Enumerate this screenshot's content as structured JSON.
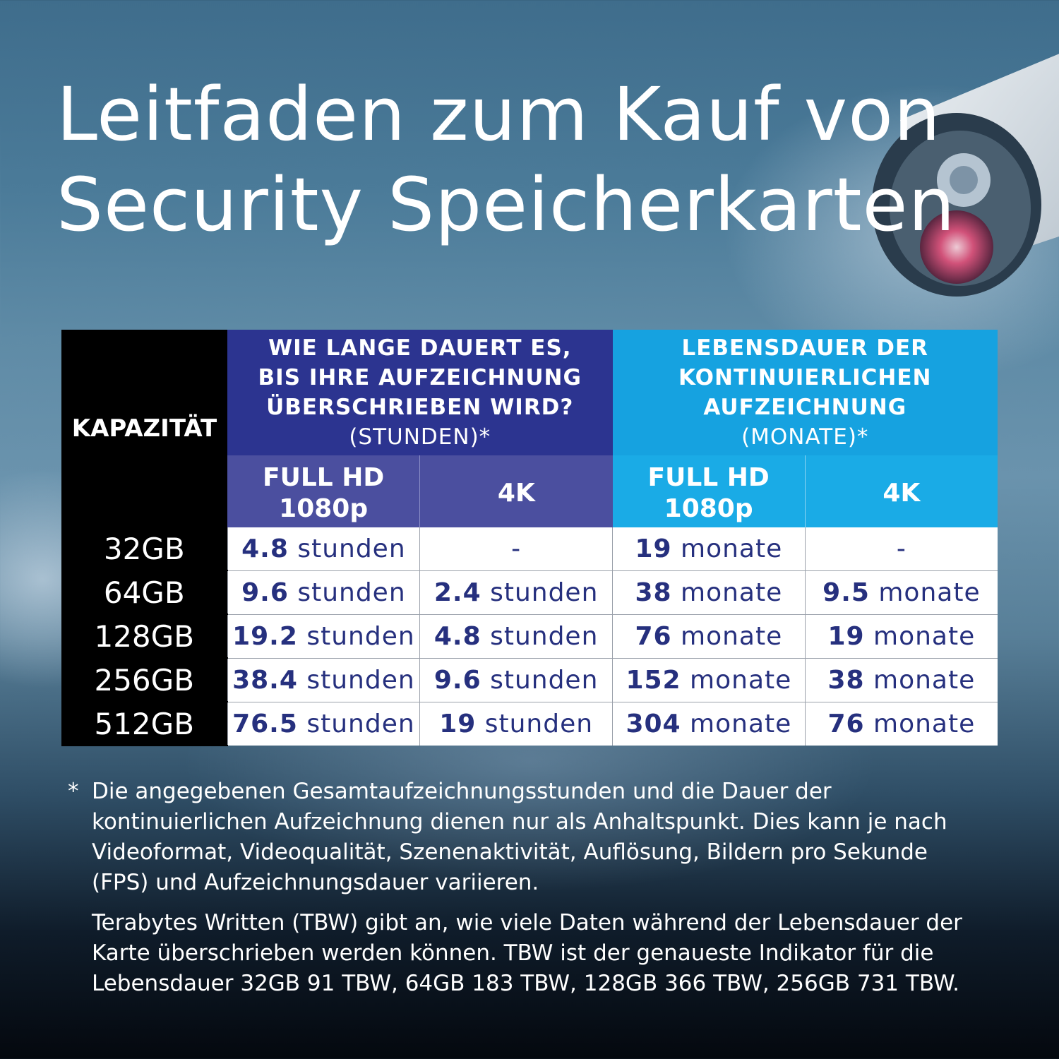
{
  "title_line1": "Leitfaden zum Kauf von",
  "title_line2": "Security Speicherkarten",
  "table": {
    "capacity_header": "KAPAZITÄT",
    "group_hours": {
      "line1": "WIE LANGE DAUERT ES,",
      "line2": "BIS IHRE AUFZEICHNUNG",
      "line3": "ÜBERSCHRIEBEN WIRD?",
      "unit": "(STUNDEN)*"
    },
    "group_months": {
      "line1": "LEBENSDAUER DER",
      "line2": "KONTINUIERLICHEN",
      "line3": "AUFZEICHNUNG",
      "unit": "(MONATE)*"
    },
    "sub_fullhd": "FULL HD",
    "sub_fullhd_res": "1080p",
    "sub_4k": "4K",
    "rows": [
      {
        "capacity": "32GB",
        "h_fhd_num": "4.8",
        "h_fhd_unit": " stunden",
        "h_4k_num": "",
        "h_4k_unit": "-",
        "m_fhd_num": "19",
        "m_fhd_unit": " monate",
        "m_4k_num": "",
        "m_4k_unit": "-"
      },
      {
        "capacity": "64GB",
        "h_fhd_num": "9.6",
        "h_fhd_unit": " stunden",
        "h_4k_num": "2.4",
        "h_4k_unit": " stunden",
        "m_fhd_num": "38",
        "m_fhd_unit": " monate",
        "m_4k_num": "9.5",
        "m_4k_unit": " monate"
      },
      {
        "capacity": "128GB",
        "h_fhd_num": "19.2",
        "h_fhd_unit": " stunden",
        "h_4k_num": "4.8",
        "h_4k_unit": " stunden",
        "m_fhd_num": "76",
        "m_fhd_unit": " monate",
        "m_4k_num": "19",
        "m_4k_unit": " monate"
      },
      {
        "capacity": "256GB",
        "h_fhd_num": "38.4",
        "h_fhd_unit": " stunden",
        "h_4k_num": "9.6",
        "h_4k_unit": " stunden",
        "m_fhd_num": "152",
        "m_fhd_unit": " monate",
        "m_4k_num": "38",
        "m_4k_unit": " monate"
      },
      {
        "capacity": "512GB",
        "h_fhd_num": "76.5",
        "h_fhd_unit": " stunden",
        "h_4k_num": "19",
        "h_4k_unit": " stunden",
        "m_fhd_num": "304",
        "m_fhd_unit": " monate",
        "m_4k_num": "76",
        "m_4k_unit": " monate"
      }
    ]
  },
  "notes": {
    "star": "*",
    "note1": "Die angegebenen Gesamtaufzeichnungsstunden und die Dauer der kontinuierlichen Aufzeichnung dienen nur als Anhaltspunkt. Dies kann je nach Videoformat, Videoqualität, Szenenaktivität, Auflösung, Bildern pro Sekunde (FPS) und Aufzeichnungsdauer variieren.",
    "note2": "Terabytes Written (TBW) gibt an, wie viele Daten während der Lebensdauer der Karte überschrieben werden können. TBW ist der genaueste Indikator für die Lebensdauer 32GB 91 TBW, 64GB 183 TBW, 128GB 366 TBW, 256GB 731 TBW."
  }
}
